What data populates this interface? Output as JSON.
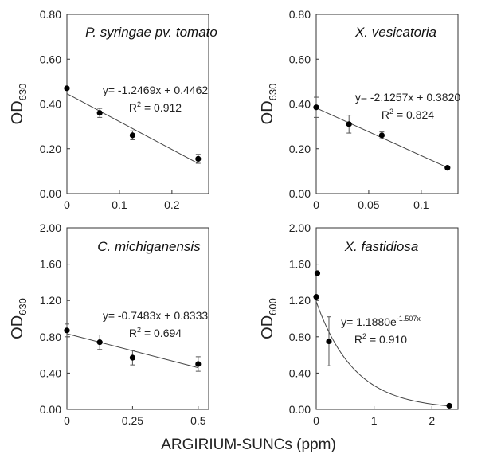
{
  "figure": {
    "xlabel": "ARGIRIUM-SUNCs (ppm)"
  },
  "chart_data": [
    {
      "type": "scatter",
      "title": "P. syringae pv. tomato",
      "ylabel": "OD",
      "ylabel_sub": "630",
      "xlim": [
        0,
        0.27
      ],
      "ylim": [
        0,
        0.8
      ],
      "xticks": [
        0,
        0.1,
        0.2
      ],
      "xtick_labels": [
        "0",
        "0.1",
        "0.2"
      ],
      "yticks": [
        0,
        0.2,
        0.4,
        0.6,
        0.8
      ],
      "ytick_labels": [
        "0.00",
        "0.20",
        "0.40",
        "0.60",
        "0.80"
      ],
      "points": [
        {
          "x": 0,
          "y": 0.47,
          "err": 0.0
        },
        {
          "x": 0.0625,
          "y": 0.36,
          "err": 0.02
        },
        {
          "x": 0.125,
          "y": 0.26,
          "err": 0.02
        },
        {
          "x": 0.25,
          "y": 0.155,
          "err": 0.02
        }
      ],
      "fit": {
        "type": "linear",
        "slope": -1.2469,
        "intercept": 0.4462,
        "x_range": [
          0,
          0.25
        ]
      },
      "equation": "y= -1.2469x + 0.4462",
      "r2_label": "R",
      "r2_value": "= 0.912"
    },
    {
      "type": "scatter",
      "title": "X. vesicatoria",
      "ylabel": "OD",
      "ylabel_sub": "630",
      "xlim": [
        0,
        0.135
      ],
      "ylim": [
        0,
        0.8
      ],
      "xticks": [
        0,
        0.05,
        0.1
      ],
      "xtick_labels": [
        "0",
        "0.05",
        "0.1"
      ],
      "yticks": [
        0,
        0.2,
        0.4,
        0.6,
        0.8
      ],
      "ytick_labels": [
        "0.00",
        "0.20",
        "0.40",
        "0.60",
        "0.80"
      ],
      "points": [
        {
          "x": 0,
          "y": 0.385,
          "err": 0.045
        },
        {
          "x": 0.03125,
          "y": 0.31,
          "err": 0.04
        },
        {
          "x": 0.0625,
          "y": 0.26,
          "err": 0.015
        },
        {
          "x": 0.125,
          "y": 0.115,
          "err": 0.005
        }
      ],
      "fit": {
        "type": "linear",
        "slope": -2.1257,
        "intercept": 0.382,
        "x_range": [
          0,
          0.125
        ]
      },
      "equation": "y= -2.1257x + 0.3820",
      "r2_label": "R",
      "r2_value": "= 0.824"
    },
    {
      "type": "scatter",
      "title": "C. michiganensis",
      "ylabel": "OD",
      "ylabel_sub": "630",
      "xlim": [
        0,
        0.54
      ],
      "ylim": [
        0,
        2.0
      ],
      "xticks": [
        0,
        0.25,
        0.5
      ],
      "xtick_labels": [
        "0",
        "0.25",
        "0.5"
      ],
      "yticks": [
        0,
        0.4,
        0.8,
        1.2,
        1.6,
        2.0
      ],
      "ytick_labels": [
        "0.00",
        "0.40",
        "0.80",
        "1.20",
        "1.60",
        "2.00"
      ],
      "points": [
        {
          "x": 0,
          "y": 0.87,
          "err": 0.07
        },
        {
          "x": 0.125,
          "y": 0.74,
          "err": 0.08
        },
        {
          "x": 0.25,
          "y": 0.57,
          "err": 0.08
        },
        {
          "x": 0.5,
          "y": 0.5,
          "err": 0.08
        }
      ],
      "fit": {
        "type": "linear",
        "slope": -0.7483,
        "intercept": 0.8333,
        "x_range": [
          0,
          0.5
        ]
      },
      "equation": "y= -0.7483x + 0.8333",
      "r2_label": "R",
      "r2_value": "= 0.694"
    },
    {
      "type": "scatter",
      "title": "X. fastidiosa",
      "ylabel": "OD",
      "ylabel_sub": "600",
      "xlim": [
        0,
        2.45
      ],
      "ylim": [
        0,
        2.0
      ],
      "xticks": [
        0,
        1,
        2
      ],
      "xtick_labels": [
        "0",
        "1",
        "2"
      ],
      "yticks": [
        0,
        0.4,
        0.8,
        1.2,
        1.6,
        2.0
      ],
      "ytick_labels": [
        "0.00",
        "0.40",
        "0.80",
        "1.20",
        "1.60",
        "2.00"
      ],
      "points": [
        {
          "x": 0,
          "y": 1.24,
          "err": 0.0
        },
        {
          "x": 0.02,
          "y": 1.5,
          "err": 0.0
        },
        {
          "x": 0.22,
          "y": 0.75,
          "err": 0.27
        },
        {
          "x": 2.3,
          "y": 0.04,
          "err": 0.0
        }
      ],
      "fit": {
        "type": "exponential",
        "a": 1.188,
        "b": -1.507,
        "x_range": [
          0,
          2.3
        ]
      },
      "equation": "y= 1.1880e",
      "equation_exp": "-1.507x",
      "r2_label": "R",
      "r2_value": "= 0.910"
    }
  ]
}
